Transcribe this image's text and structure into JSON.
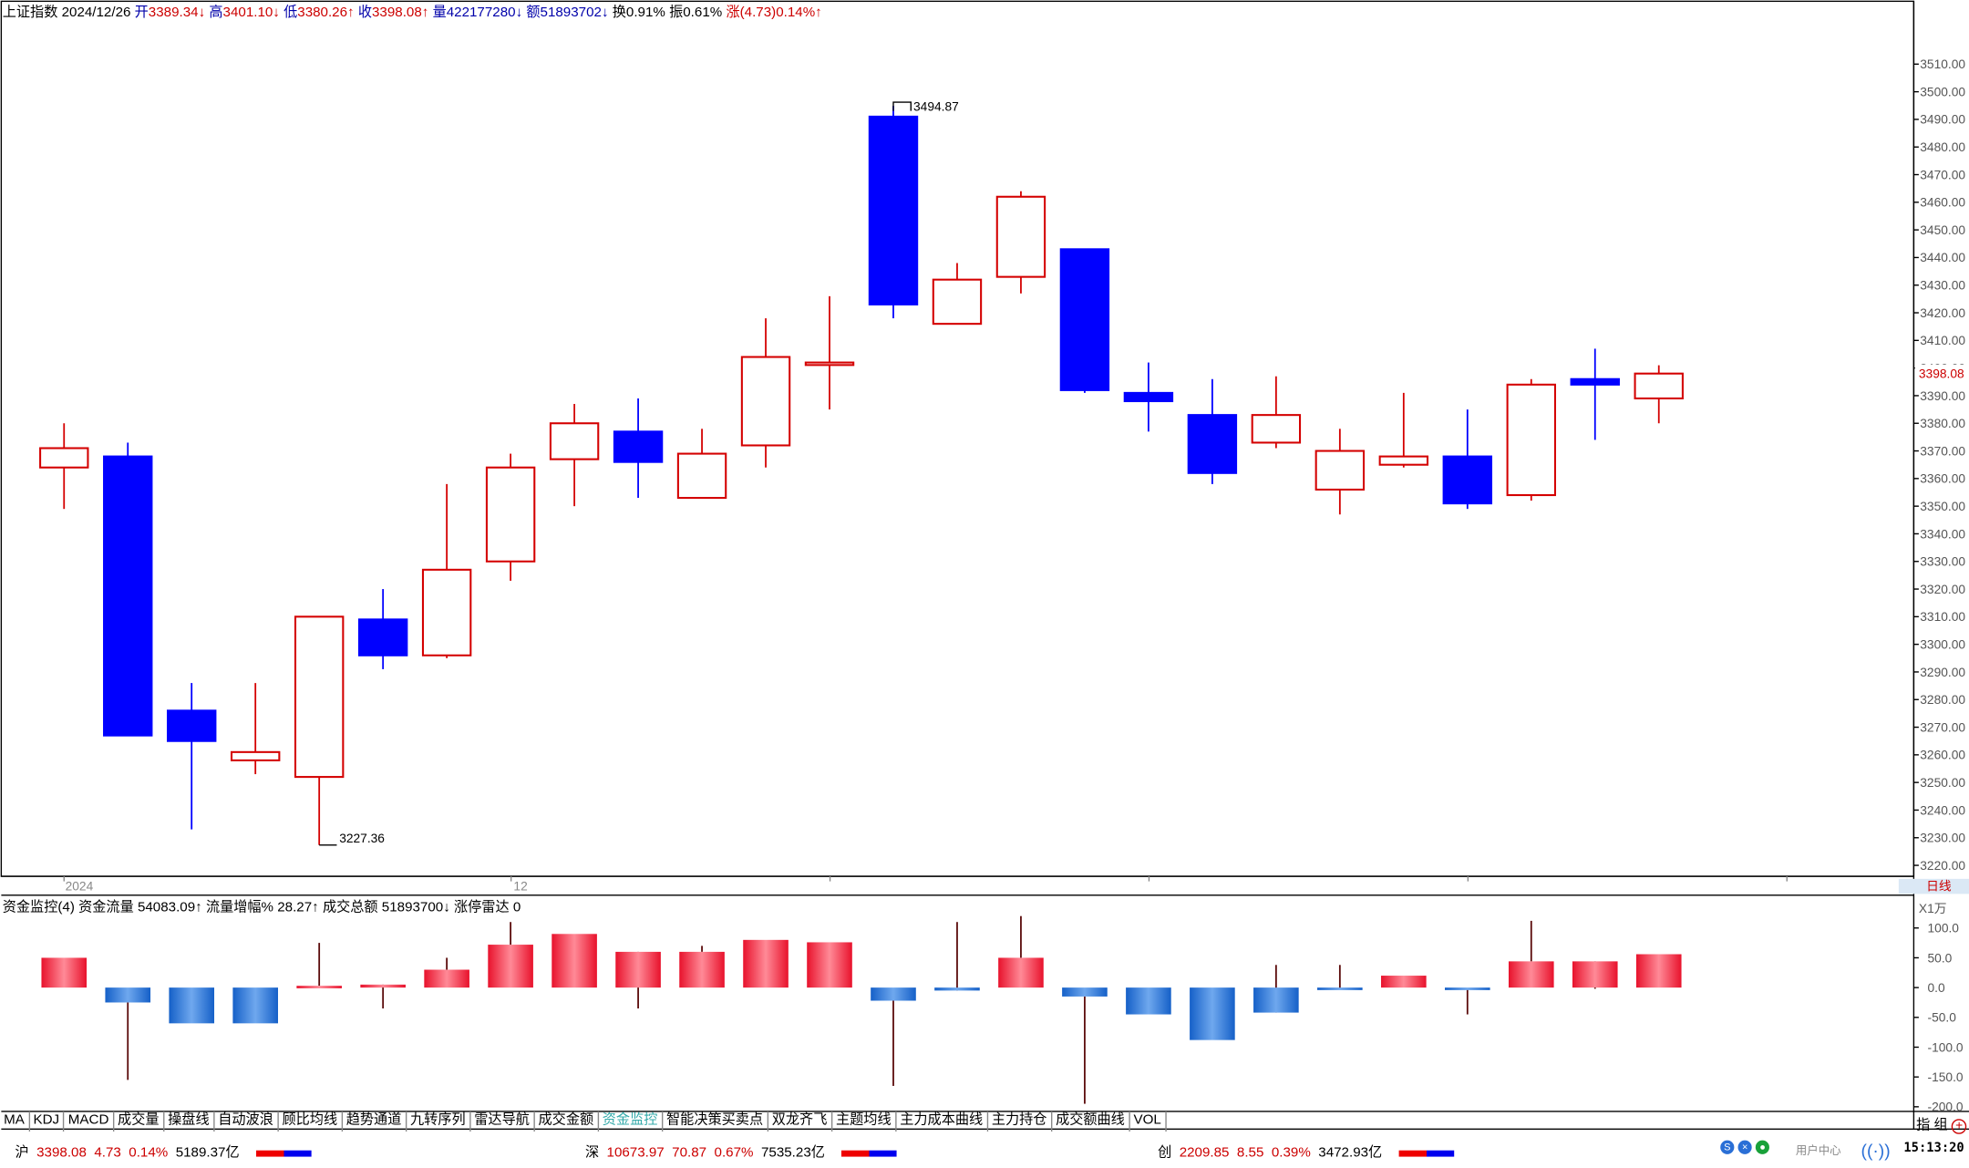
{
  "header": {
    "name": "上证指数",
    "date": "2024/12/26",
    "open_label": "开",
    "open": "3389.34↓",
    "high_label": "高",
    "high": "3401.10↓",
    "low_label": "低",
    "low": "3380.26↑",
    "close_label": "收",
    "close": "3398.08↑",
    "vol_label": "量",
    "vol": "422177280↓",
    "amt_label": "额",
    "amt": "51893702↓",
    "turnover": "换0.91%",
    "amplitude": "振0.61%",
    "change": "涨(4.73)0.14%↑"
  },
  "price_axis": {
    "ticks": [
      "3510.00",
      "3500.00",
      "3490.00",
      "3480.00",
      "3470.00",
      "3460.00",
      "3450.00",
      "3440.00",
      "3430.00",
      "3420.00",
      "3410.00",
      "3400.00",
      "3390.00",
      "3380.00",
      "3370.00",
      "3360.00",
      "3350.00",
      "3340.00",
      "3330.00",
      "3320.00",
      "3310.00",
      "3300.00",
      "3290.00",
      "3280.00",
      "3270.00",
      "3260.00",
      "3250.00",
      "3240.00",
      "3230.00",
      "3220.00"
    ],
    "current": "3398.08",
    "period_label": "日线"
  },
  "time_axis": {
    "year_label": "2024",
    "month_label": "12"
  },
  "annotations": {
    "high_label": "3494.87",
    "low_label": "3227.36"
  },
  "indicator": {
    "title": "资金监控(4)",
    "flow": "资金流量 54083.09↑",
    "flow_pct": "流量增幅% 28.27↑",
    "amount": "成交总额 51893700↓",
    "limit": "涨停雷达 0",
    "scale_label": "X1万",
    "ticks": [
      "100.0",
      "50.0",
      "0.0",
      "-50.0",
      "-100.0",
      "-150.0",
      "-200.0"
    ]
  },
  "tabs": [
    "MA",
    "KDJ",
    "MACD",
    "成交量",
    "操盘线",
    "自动波浪",
    "顾比均线",
    "趋势通道",
    "九转序列",
    "雷达导航",
    "成交金额",
    "资金监控",
    "智能决策买卖点",
    "双龙齐飞",
    "主题均线",
    "主力成本曲线",
    "主力持仓",
    "成交额曲线",
    "VOL"
  ],
  "active_tab": "资金监控",
  "corner_label": "指 组",
  "status": {
    "sh_label": "沪",
    "sh_val": "3398.08",
    "sh_chg": "4.73",
    "sh_pct": "0.14%",
    "sh_amt": "5189.37亿",
    "sz_label": "深",
    "sz_val": "10673.97",
    "sz_chg": "70.87",
    "sz_pct": "0.67%",
    "sz_amt": "7535.23亿",
    "cy_label": "创",
    "cy_val": "2209.85",
    "cy_chg": "8.55",
    "cy_pct": "0.39%",
    "cy_amt": "3472.93亿",
    "user_center": "用户中心",
    "clock": "15:13:20"
  },
  "colors": {
    "up": "#d40000",
    "down": "#0000ff",
    "flow_up": "#e8122c",
    "flow_down": "#1560c8"
  },
  "chart_data": {
    "type": "candlestick",
    "y_range": [
      3220,
      3515
    ],
    "candles": [
      [
        3364,
        3371,
        3349,
        3380
      ],
      [
        3368,
        3267,
        3267,
        3373
      ],
      [
        3276,
        3265,
        3233,
        3286
      ],
      [
        3258,
        3261,
        3253,
        3286
      ],
      [
        3252,
        3310,
        3227.36,
        3310
      ],
      [
        3309,
        3296,
        3291,
        3320
      ],
      [
        3296,
        3327,
        3295,
        3358
      ],
      [
        3330,
        3364,
        3323,
        3369
      ],
      [
        3367,
        3380,
        3350,
        3387
      ],
      [
        3377,
        3366,
        3353,
        3389
      ],
      [
        3353,
        3369,
        3353,
        3378
      ],
      [
        3372,
        3404,
        3364,
        3418
      ],
      [
        3402,
        3402,
        3385,
        3426
      ],
      [
        3491,
        3423,
        3418,
        3494.87
      ],
      [
        3416,
        3432,
        3416,
        3438
      ],
      [
        3433,
        3462,
        3427,
        3464
      ],
      [
        3443,
        3392,
        3391,
        3443
      ],
      [
        3391,
        3388,
        3377,
        3402
      ],
      [
        3383,
        3362,
        3358,
        3396
      ],
      [
        3373,
        3383,
        3371,
        3397
      ],
      [
        3356,
        3370,
        3347,
        3378
      ],
      [
        3365,
        3368,
        3364,
        3391
      ],
      [
        3368,
        3351,
        3349,
        3385
      ],
      [
        3354,
        3394,
        3352,
        3396
      ],
      [
        3396,
        3394,
        3374,
        3407
      ],
      [
        3389,
        3398,
        3380,
        3401
      ]
    ],
    "flow": {
      "y_range": [
        -200,
        120
      ],
      "bars": [
        50,
        -25,
        -60,
        -60,
        3,
        5,
        30,
        72,
        90,
        60,
        60,
        80,
        76,
        -22,
        -5,
        50,
        -15,
        -45,
        -88,
        -42,
        -2,
        20,
        -1,
        44,
        44,
        56
      ],
      "wicks": [
        [
          50,
          50
        ],
        [
          -25,
          -155
        ],
        [
          -60,
          -60
        ],
        [
          -60,
          -60
        ],
        [
          75,
          3
        ],
        [
          5,
          -35
        ],
        [
          50,
          30
        ],
        [
          110,
          72
        ],
        [
          90,
          90
        ],
        [
          60,
          -35
        ],
        [
          70,
          60
        ],
        [
          80,
          80
        ],
        [
          76,
          76
        ],
        [
          -22,
          -165
        ],
        [
          110,
          -5
        ],
        [
          120,
          50
        ],
        [
          -15,
          -195
        ],
        [
          -45,
          -45
        ],
        [
          -88,
          -88
        ],
        [
          38,
          -42
        ],
        [
          38,
          -2
        ],
        [
          20,
          20
        ],
        [
          -1,
          -45
        ],
        [
          112,
          44
        ],
        [
          44,
          -2
        ],
        [
          56,
          56
        ]
      ]
    }
  }
}
